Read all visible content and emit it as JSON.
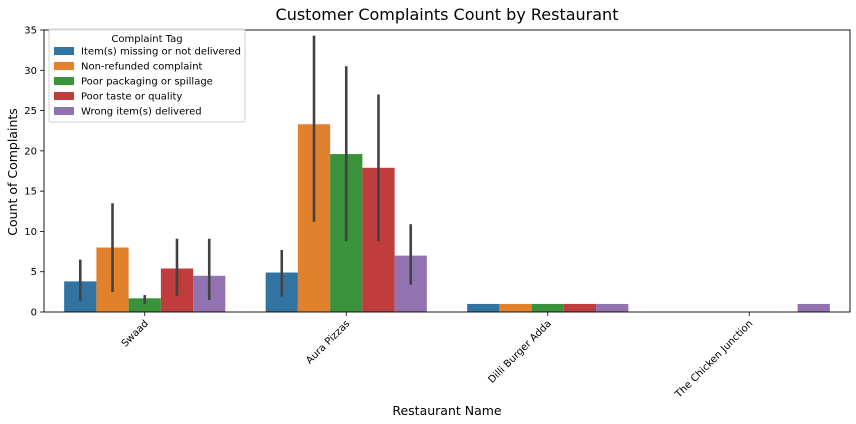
{
  "chart_data": {
    "type": "bar",
    "title": "Customer Complaints Count by Restaurant",
    "xlabel": "Restaurant Name",
    "ylabel": "Count of Complaints",
    "ylim": [
      0,
      35
    ],
    "yticks": [
      0,
      5,
      10,
      15,
      20,
      25,
      30,
      35
    ],
    "grid": false,
    "categories": [
      "Swaad",
      "Aura Pizzas",
      "Dilli Burger Adda",
      "The Chicken Junction"
    ],
    "legend": {
      "title": "Complaint Tag",
      "placement": "top-left"
    },
    "series": [
      {
        "name": "Item(s) missing or not delivered",
        "color": "#3274a1",
        "values": [
          3.8,
          4.9,
          1,
          null
        ],
        "err_low": [
          1.4,
          1.9,
          null,
          null
        ],
        "err_high": [
          6.5,
          7.7,
          null,
          null
        ]
      },
      {
        "name": "Non-refunded complaint",
        "color": "#e1812c",
        "values": [
          8.0,
          23.3,
          1,
          null
        ],
        "err_low": [
          2.5,
          11.2,
          null,
          null
        ],
        "err_high": [
          13.5,
          34.3,
          null,
          null
        ]
      },
      {
        "name": "Poor packaging or spillage",
        "color": "#3a923a",
        "values": [
          1.7,
          19.6,
          1,
          null
        ],
        "err_low": [
          1.0,
          8.8,
          null,
          null
        ],
        "err_high": [
          2.1,
          30.5,
          null,
          null
        ]
      },
      {
        "name": "Poor taste or quality",
        "color": "#c03d3e",
        "values": [
          5.4,
          17.9,
          1,
          null
        ],
        "err_low": [
          2.0,
          8.8,
          null,
          null
        ],
        "err_high": [
          9.1,
          27.0,
          null,
          null
        ]
      },
      {
        "name": "Wrong item(s) delivered",
        "color": "#9372b2",
        "values": [
          4.5,
          7.0,
          1,
          1
        ],
        "err_low": [
          1.5,
          3.4,
          null,
          null
        ],
        "err_high": [
          9.1,
          10.9,
          null,
          null
        ]
      }
    ]
  }
}
